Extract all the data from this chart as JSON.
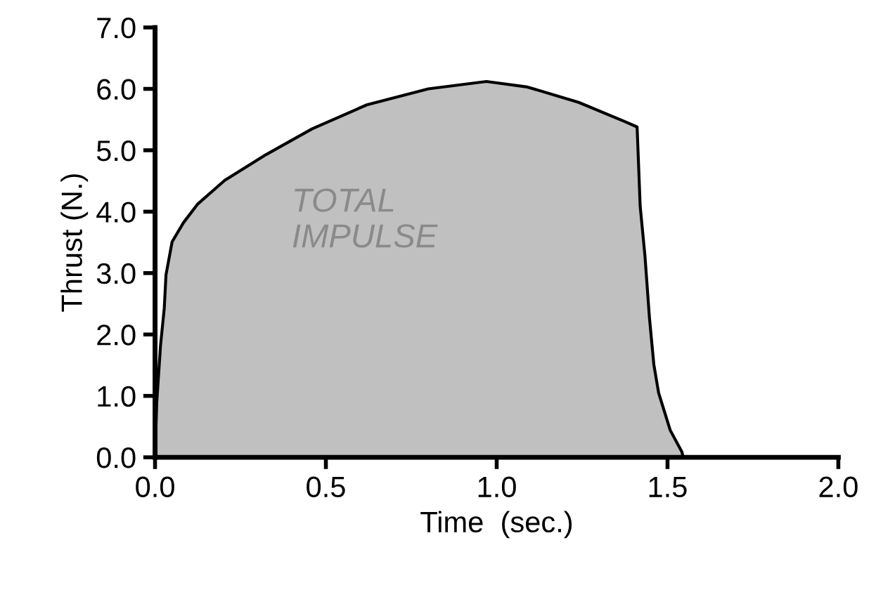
{
  "chart_data": {
    "type": "area",
    "xlabel": "Time  (sec.)",
    "ylabel": "Thrust (N.)",
    "x": [
      0,
      0.005,
      0.016,
      0.027,
      0.032,
      0.05,
      0.083,
      0.124,
      0.204,
      0.325,
      0.46,
      0.62,
      0.8,
      0.97,
      1.09,
      1.24,
      1.374,
      1.411,
      1.42,
      1.434,
      1.447,
      1.46,
      1.474,
      1.508,
      1.542,
      1.546
    ],
    "series": [
      {
        "color": "#c0c0c0",
        "values": [
          0,
          0.9,
          1.82,
          2.43,
          2.97,
          3.51,
          3.82,
          4.12,
          4.51,
          4.93,
          5.35,
          5.74,
          6.0,
          6.12,
          6.03,
          5.78,
          5.47,
          5.38,
          4.09,
          3.28,
          2.28,
          1.51,
          1.05,
          0.44,
          0.09,
          0
        ]
      }
    ],
    "xlim": [
      0,
      2.0
    ],
    "ylim": [
      0,
      7.0
    ],
    "xticks": [
      {
        "value": 0,
        "label": "0.0"
      },
      0.5,
      {
        "value": 1,
        "label": "1.0"
      },
      1.5,
      {
        "value": 2,
        "label": "2.0"
      }
    ],
    "yticks": [
      {
        "value": 0,
        "label": "0.0"
      },
      {
        "value": 1,
        "label": "1.0"
      },
      {
        "value": 2,
        "label": "2.0"
      },
      {
        "value": 3,
        "label": "3.0"
      },
      {
        "value": 4,
        "label": "4.0"
      },
      {
        "value": 5,
        "label": "5.0"
      },
      {
        "value": 6,
        "label": "6.0"
      },
      {
        "value": 7,
        "label": "7.0"
      }
    ],
    "annotations": [
      "TOTAL\nIMPULSE"
    ]
  }
}
